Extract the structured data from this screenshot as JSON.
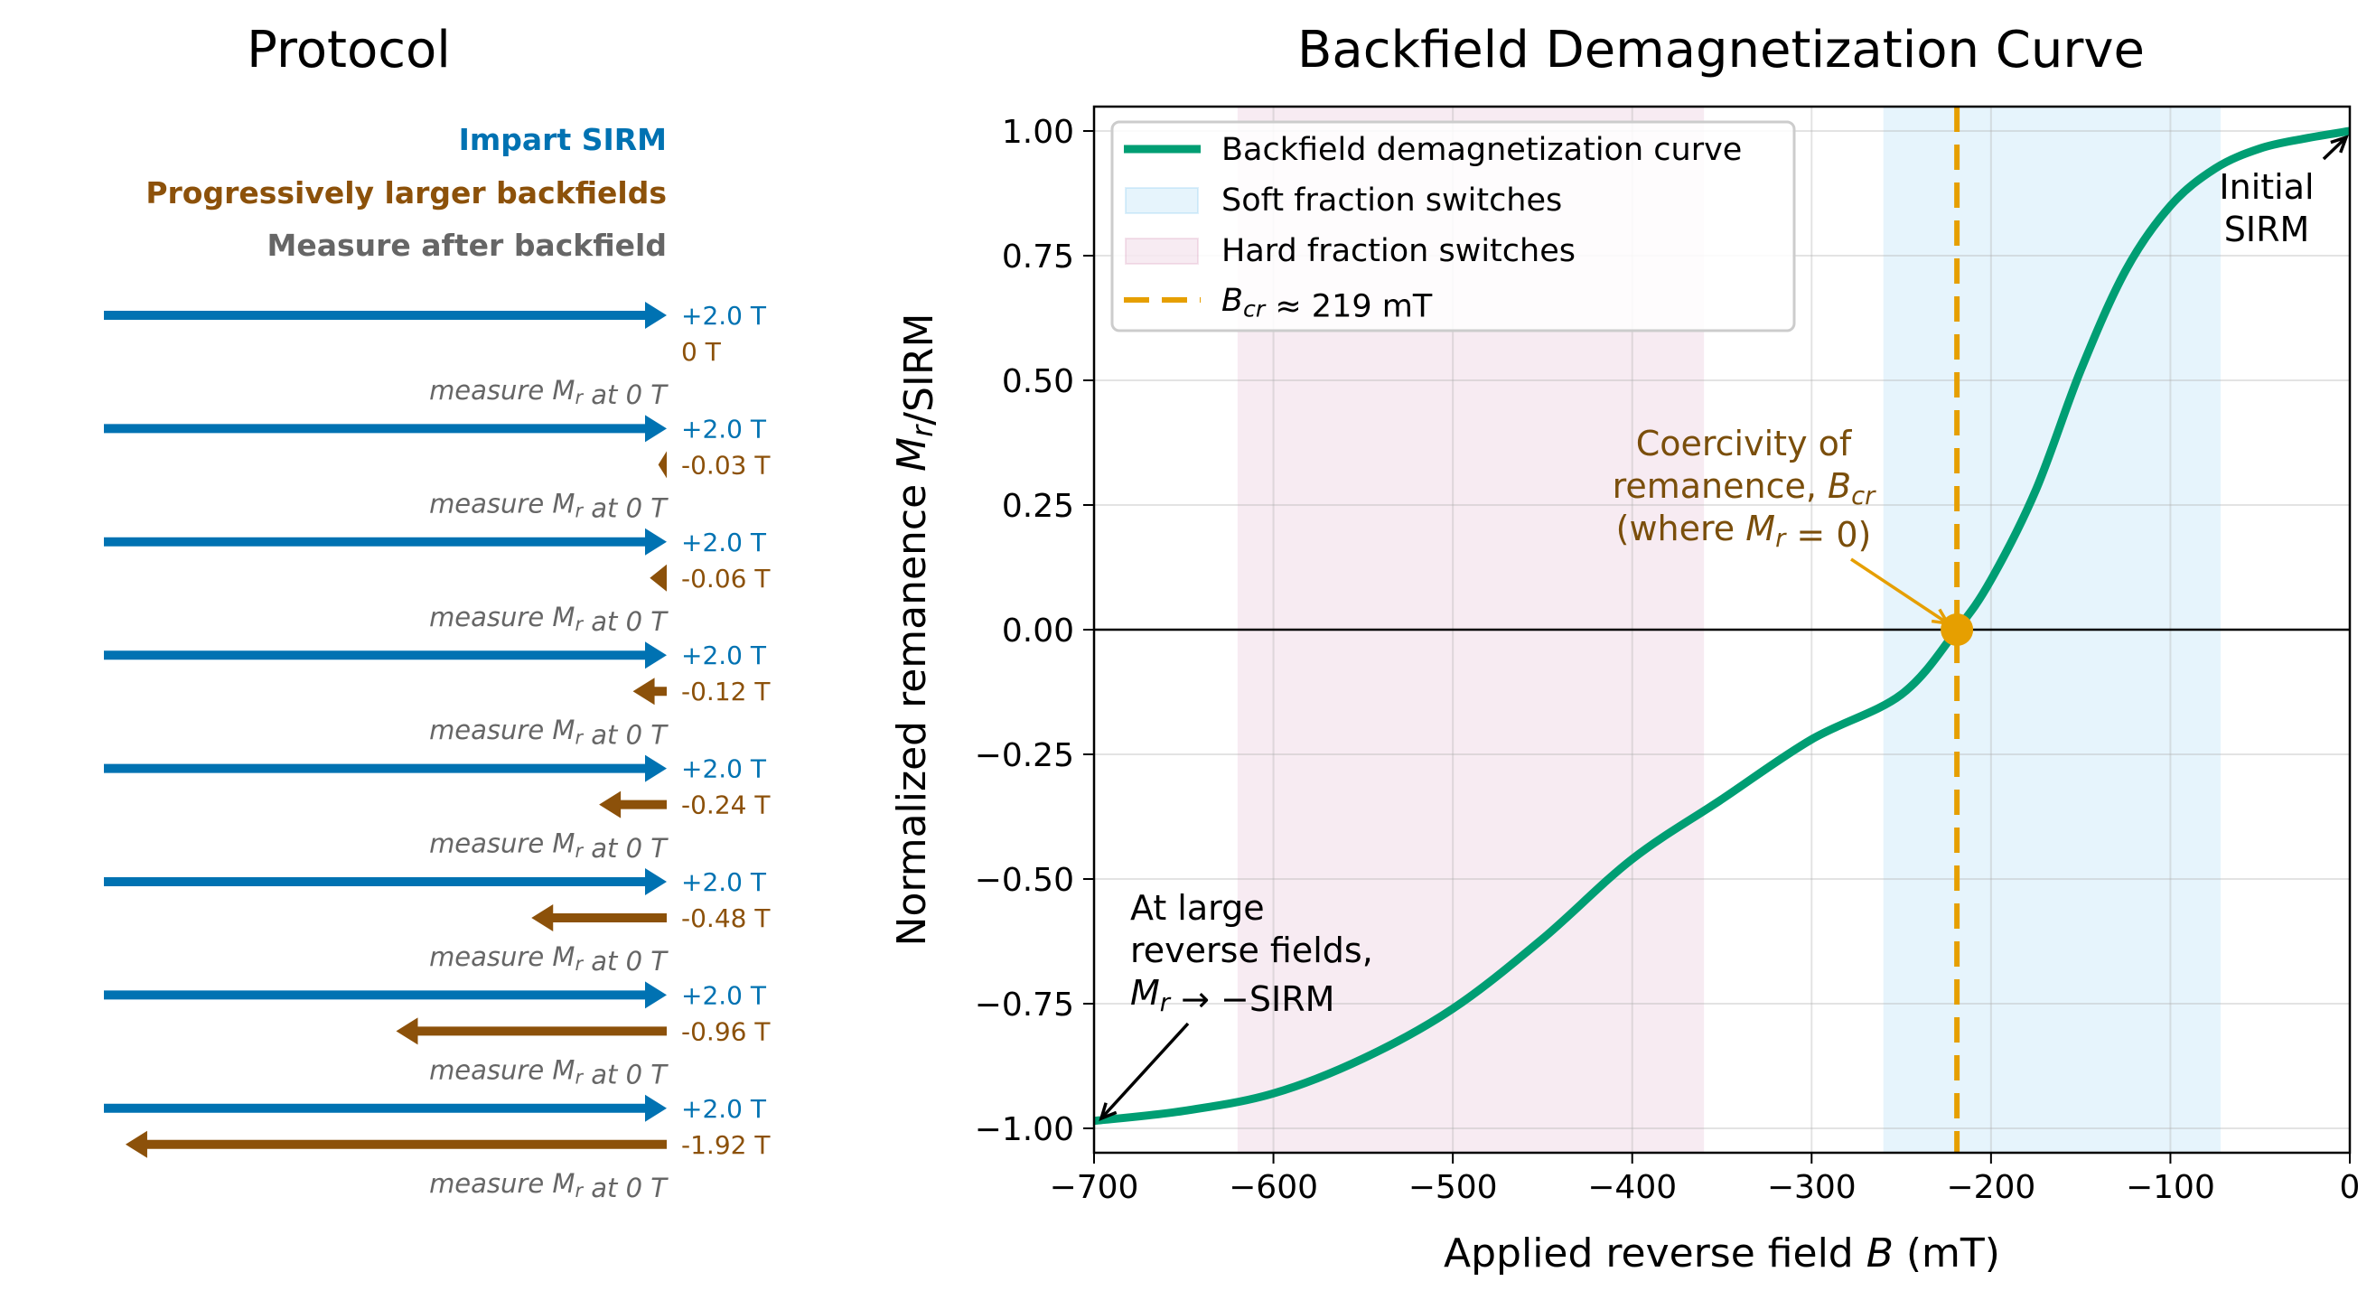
{
  "protocol": {
    "title": "Protocol",
    "legend": [
      {
        "text": "Impart SIRM",
        "color": "#0072B2"
      },
      {
        "text": "Progressively larger backfields",
        "color": "#8C510A"
      },
      {
        "text": "Measure after backfield",
        "color": "#666666"
      }
    ],
    "steps": [
      {
        "sirm": "+2.0 T",
        "backfield": "0 T",
        "backfield_T": 0,
        "measure": "measure M_r at 0 T"
      },
      {
        "sirm": "+2.0 T",
        "backfield": "-0.03 T",
        "backfield_T": 0.03,
        "measure": "measure M_r at 0 T"
      },
      {
        "sirm": "+2.0 T",
        "backfield": "-0.06 T",
        "backfield_T": 0.06,
        "measure": "measure M_r at 0 T"
      },
      {
        "sirm": "+2.0 T",
        "backfield": "-0.12 T",
        "backfield_T": 0.12,
        "measure": "measure M_r at 0 T"
      },
      {
        "sirm": "+2.0 T",
        "backfield": "-0.24 T",
        "backfield_T": 0.24,
        "measure": "measure M_r at 0 T"
      },
      {
        "sirm": "+2.0 T",
        "backfield": "-0.48 T",
        "backfield_T": 0.48,
        "measure": "measure M_r at 0 T"
      },
      {
        "sirm": "+2.0 T",
        "backfield": "-0.96 T",
        "backfield_T": 0.96,
        "measure": "measure M_r at 0 T"
      },
      {
        "sirm": "+2.0 T",
        "backfield": "-1.92 T",
        "backfield_T": 1.92,
        "measure": "measure M_r at 0 T"
      }
    ]
  },
  "chart_data": {
    "type": "line",
    "title": "Backfield Demagnetization Curve",
    "xlabel": "Applied reverse field B (mT)",
    "ylabel": "Normalized remanence M_r/SIRM",
    "xlim": [
      -700,
      0
    ],
    "ylim": [
      -1.05,
      1.05
    ],
    "xticks": [
      -700,
      -600,
      -500,
      -400,
      -300,
      -200,
      -100,
      0
    ],
    "xtick_labels": [
      "−700",
      "−600",
      "−500",
      "−400",
      "−300",
      "−200",
      "−100",
      "0"
    ],
    "yticks": [
      1.0,
      0.75,
      0.5,
      0.25,
      0.0,
      -0.25,
      -0.5,
      -0.75,
      -1.0
    ],
    "ytick_labels": [
      "1.00",
      "0.75",
      "0.50",
      "0.25",
      "0.00",
      "−0.25",
      "−0.50",
      "−0.75",
      "−1.00"
    ],
    "grid": true,
    "legend_placement": "upper-left",
    "series": [
      {
        "name": "Backfield demagnetization curve",
        "color": "#009E73",
        "x": [
          -700,
          -650,
          -600,
          -550,
          -500,
          -450,
          -400,
          -350,
          -300,
          -250,
          -219,
          -200,
          -175,
          -150,
          -125,
          -100,
          -75,
          -50,
          -25,
          0
        ],
        "y": [
          -0.985,
          -0.965,
          -0.93,
          -0.86,
          -0.76,
          -0.62,
          -0.46,
          -0.34,
          -0.22,
          -0.13,
          0.0,
          0.1,
          0.28,
          0.52,
          0.72,
          0.85,
          0.925,
          0.965,
          0.985,
          1.0
        ]
      }
    ],
    "regions": [
      {
        "name": "Soft fraction switches",
        "x": [
          -260,
          -72
        ],
        "color": "#56B4E9"
      },
      {
        "name": "Hard fraction switches",
        "x": [
          -620,
          -360
        ],
        "color": "#CC79A7"
      }
    ],
    "vline": {
      "name": "B_cr ≈ 219 mT",
      "x": -219,
      "color": "#E69F00"
    },
    "point": {
      "x": -219,
      "y": 0,
      "color": "#E69F00"
    },
    "annotations": {
      "initial": [
        "Initial",
        "SIRM"
      ],
      "bcr": [
        "Coercivity of",
        "remanence, B_cr",
        "(where M_r = 0)"
      ],
      "large": [
        "At large",
        "reverse fields,",
        "M_r → −SIRM"
      ],
      "bcr_color": "#7A4E0B"
    }
  }
}
